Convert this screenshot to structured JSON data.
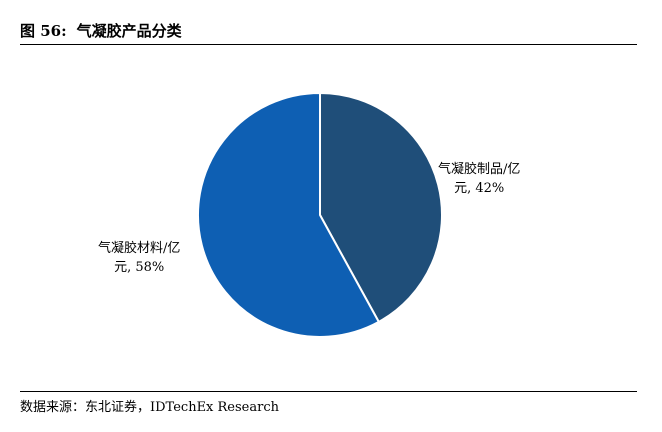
{
  "header": {
    "figure_number": "图 56:",
    "title": "气凝胶产品分类"
  },
  "chart_data": {
    "type": "pie",
    "title": "气凝胶产品分类",
    "slices": [
      {
        "label_line1": "气凝胶制品/亿",
        "label_line2": "元, 42%",
        "value": 42,
        "color": "#1f4e79"
      },
      {
        "label_line1": "气凝胶材料/亿",
        "label_line2": "元, 58%",
        "value": 58,
        "color": "#0e5fb3"
      }
    ],
    "start_angle": "12 o'clock",
    "direction": "clockwise",
    "legend": "none"
  },
  "footer": {
    "source": "数据来源：东北证券，IDTechEx Research"
  }
}
